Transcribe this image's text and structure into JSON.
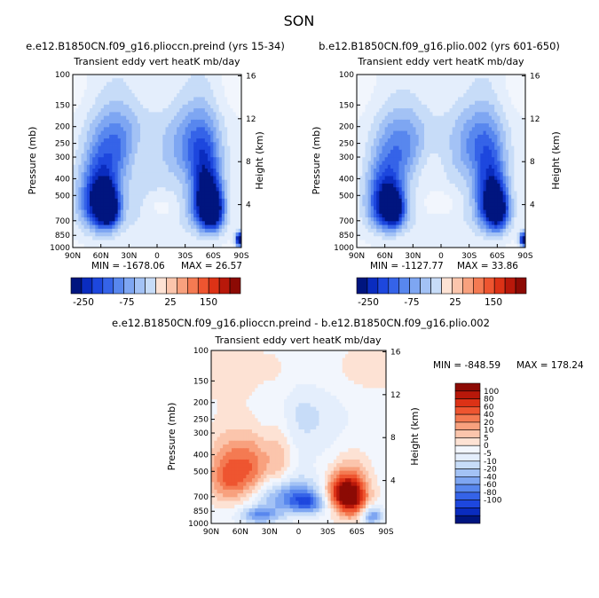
{
  "figure_title": "SON",
  "colors": {
    "blues": [
      "#00157f",
      "#0a2cbf",
      "#1d47de",
      "#3563e8",
      "#5887ee",
      "#7ea6f2",
      "#a3c2f5",
      "#c7dcf8",
      "#e4eefc"
    ],
    "neutral": "#f2f6fd",
    "reds": [
      "#fde2d4",
      "#fbc5ac",
      "#f8a17e",
      "#f47a52",
      "#ee5530",
      "#dc3216",
      "#b8180a",
      "#8c0a04"
    ]
  },
  "chart_data": [
    {
      "type": "heatmap",
      "id": "panel-a",
      "title": "e.e12.B1850CN.f09_g16.plioccn.preind (yrs 15-34)",
      "subtitle": "Transient eddy vert heatK mb/day",
      "ylabel": "Pressure (mb)",
      "ylabel_right": "Height (km)",
      "x_ticks": [
        "90N",
        "60N",
        "30N",
        "0",
        "30S",
        "60S",
        "90S"
      ],
      "y_ticks": [
        "100",
        "150",
        "200",
        "250",
        "300",
        "400",
        "500",
        "700",
        "850",
        "1000"
      ],
      "right_ticks": [
        "16",
        "12",
        "8",
        "4"
      ],
      "min_label": "MIN = -1678.06",
      "max_label": "MAX = 26.57",
      "colorbar_labels": [
        "-250",
        "-75",
        "25",
        "150"
      ],
      "xlim": [
        90,
        -90
      ],
      "ylim": [
        100,
        1000
      ],
      "field": [
        {
          "lat": 62,
          "p": 530,
          "sx": 14,
          "sy": 170,
          "amp": -10
        },
        {
          "lat": 52,
          "p": 600,
          "sx": 8,
          "sy": 110,
          "amp": -8
        },
        {
          "lat": -52,
          "p": 520,
          "sx": 11,
          "sy": 170,
          "amp": -10
        },
        {
          "lat": -60,
          "p": 620,
          "sx": 8,
          "sy": 120,
          "amp": -8
        },
        {
          "lat": 40,
          "p": 250,
          "sx": 18,
          "sy": 90,
          "amp": -4
        },
        {
          "lat": -40,
          "p": 250,
          "sx": 18,
          "sy": 90,
          "amp": -4
        },
        {
          "lat": 0,
          "p": 420,
          "sx": 60,
          "sy": 400,
          "amp": -2.2
        },
        {
          "lat": 20,
          "p": 300,
          "sx": 10,
          "sy": 70,
          "amp": 1.6
        },
        {
          "lat": -5,
          "p": 580,
          "sx": 12,
          "sy": 80,
          "amp": 1.8
        },
        {
          "lat": 0,
          "p": 120,
          "sx": 90,
          "sy": 40,
          "amp": 1.0
        },
        {
          "lat": -88,
          "p": 900,
          "sx": 3,
          "sy": 60,
          "amp": -12
        }
      ]
    },
    {
      "type": "heatmap",
      "id": "panel-b",
      "title": "b.e12.B1850CN.f09_g16.plio.002 (yrs 601-650)",
      "subtitle": "Transient eddy vert heatK mb/day",
      "ylabel": "Pressure (mb)",
      "ylabel_right": "Height (km)",
      "x_ticks": [
        "90N",
        "60N",
        "30N",
        "0",
        "30S",
        "60S",
        "90S"
      ],
      "y_ticks": [
        "100",
        "150",
        "200",
        "250",
        "300",
        "400",
        "500",
        "700",
        "850",
        "1000"
      ],
      "right_ticks": [
        "16",
        "12",
        "8",
        "4"
      ],
      "min_label": "MIN = -1127.77",
      "max_label": "MAX = 33.86",
      "colorbar_labels": [
        "-250",
        "-75",
        "25",
        "150"
      ],
      "xlim": [
        90,
        -90
      ],
      "ylim": [
        100,
        1000
      ],
      "field": [
        {
          "lat": 60,
          "p": 540,
          "sx": 13,
          "sy": 165,
          "amp": -9
        },
        {
          "lat": 50,
          "p": 610,
          "sx": 8,
          "sy": 105,
          "amp": -7
        },
        {
          "lat": -53,
          "p": 530,
          "sx": 11,
          "sy": 170,
          "amp": -9
        },
        {
          "lat": -62,
          "p": 620,
          "sx": 8,
          "sy": 120,
          "amp": -7
        },
        {
          "lat": 38,
          "p": 260,
          "sx": 18,
          "sy": 90,
          "amp": -3.8
        },
        {
          "lat": -40,
          "p": 250,
          "sx": 18,
          "sy": 90,
          "amp": -3.8
        },
        {
          "lat": 0,
          "p": 420,
          "sx": 60,
          "sy": 400,
          "amp": -2.2
        },
        {
          "lat": 15,
          "p": 330,
          "sx": 14,
          "sy": 90,
          "amp": 1.8
        },
        {
          "lat": 2,
          "p": 560,
          "sx": 16,
          "sy": 90,
          "amp": 2.2
        },
        {
          "lat": 0,
          "p": 120,
          "sx": 90,
          "sy": 40,
          "amp": 1.0
        },
        {
          "lat": -88,
          "p": 900,
          "sx": 3,
          "sy": 60,
          "amp": -11
        }
      ]
    },
    {
      "type": "heatmap",
      "id": "panel-diff",
      "title": "e.e12.B1850CN.f09_g16.plioccn.preind - b.e12.B1850CN.f09_g16.plio.002",
      "subtitle": "Transient eddy vert heatK mb/day",
      "ylabel": "Pressure (mb)",
      "ylabel_right": "Height (km)",
      "x_ticks": [
        "90N",
        "60N",
        "30N",
        "0",
        "30S",
        "60S",
        "90S"
      ],
      "y_ticks": [
        "100",
        "150",
        "200",
        "250",
        "300",
        "400",
        "500",
        "700",
        "850",
        "1000"
      ],
      "right_ticks": [
        "16",
        "12",
        "8",
        "4"
      ],
      "min_label": "MIN = -848.59",
      "max_label": "MAX = 178.24",
      "colorbar_levels": [
        "100",
        "80",
        "60",
        "40",
        "20",
        "10",
        "5",
        "0",
        "-5",
        "-10",
        "-20",
        "-40",
        "-60",
        "-80",
        "-100"
      ],
      "xlim": [
        90,
        -90
      ],
      "ylim": [
        100,
        1000
      ],
      "field": [
        {
          "lat": 70,
          "p": 520,
          "sx": 16,
          "sy": 150,
          "amp": 3.2
        },
        {
          "lat": 45,
          "p": 450,
          "sx": 12,
          "sy": 140,
          "amp": 1.8
        },
        {
          "lat": 20,
          "p": 420,
          "sx": 10,
          "sy": 160,
          "amp": 1.6
        },
        {
          "lat": -55,
          "p": 700,
          "sx": 12,
          "sy": 150,
          "amp": 5.2
        },
        {
          "lat": -40,
          "p": 650,
          "sx": 10,
          "sy": 100,
          "amp": 2.5
        },
        {
          "lat": 10,
          "p": 700,
          "sx": 22,
          "sy": 120,
          "amp": -3.0
        },
        {
          "lat": -10,
          "p": 760,
          "sx": 12,
          "sy": 80,
          "amp": -2.5
        },
        {
          "lat": 40,
          "p": 900,
          "sx": 14,
          "sy": 70,
          "amp": -2.8
        },
        {
          "lat": 0,
          "p": 220,
          "sx": 35,
          "sy": 120,
          "amp": -1.2
        },
        {
          "lat": -75,
          "p": 900,
          "sx": 8,
          "sy": 80,
          "amp": -3.0
        },
        {
          "lat": 0,
          "p": 130,
          "sx": 90,
          "sy": 45,
          "amp": 0.8
        }
      ]
    }
  ]
}
